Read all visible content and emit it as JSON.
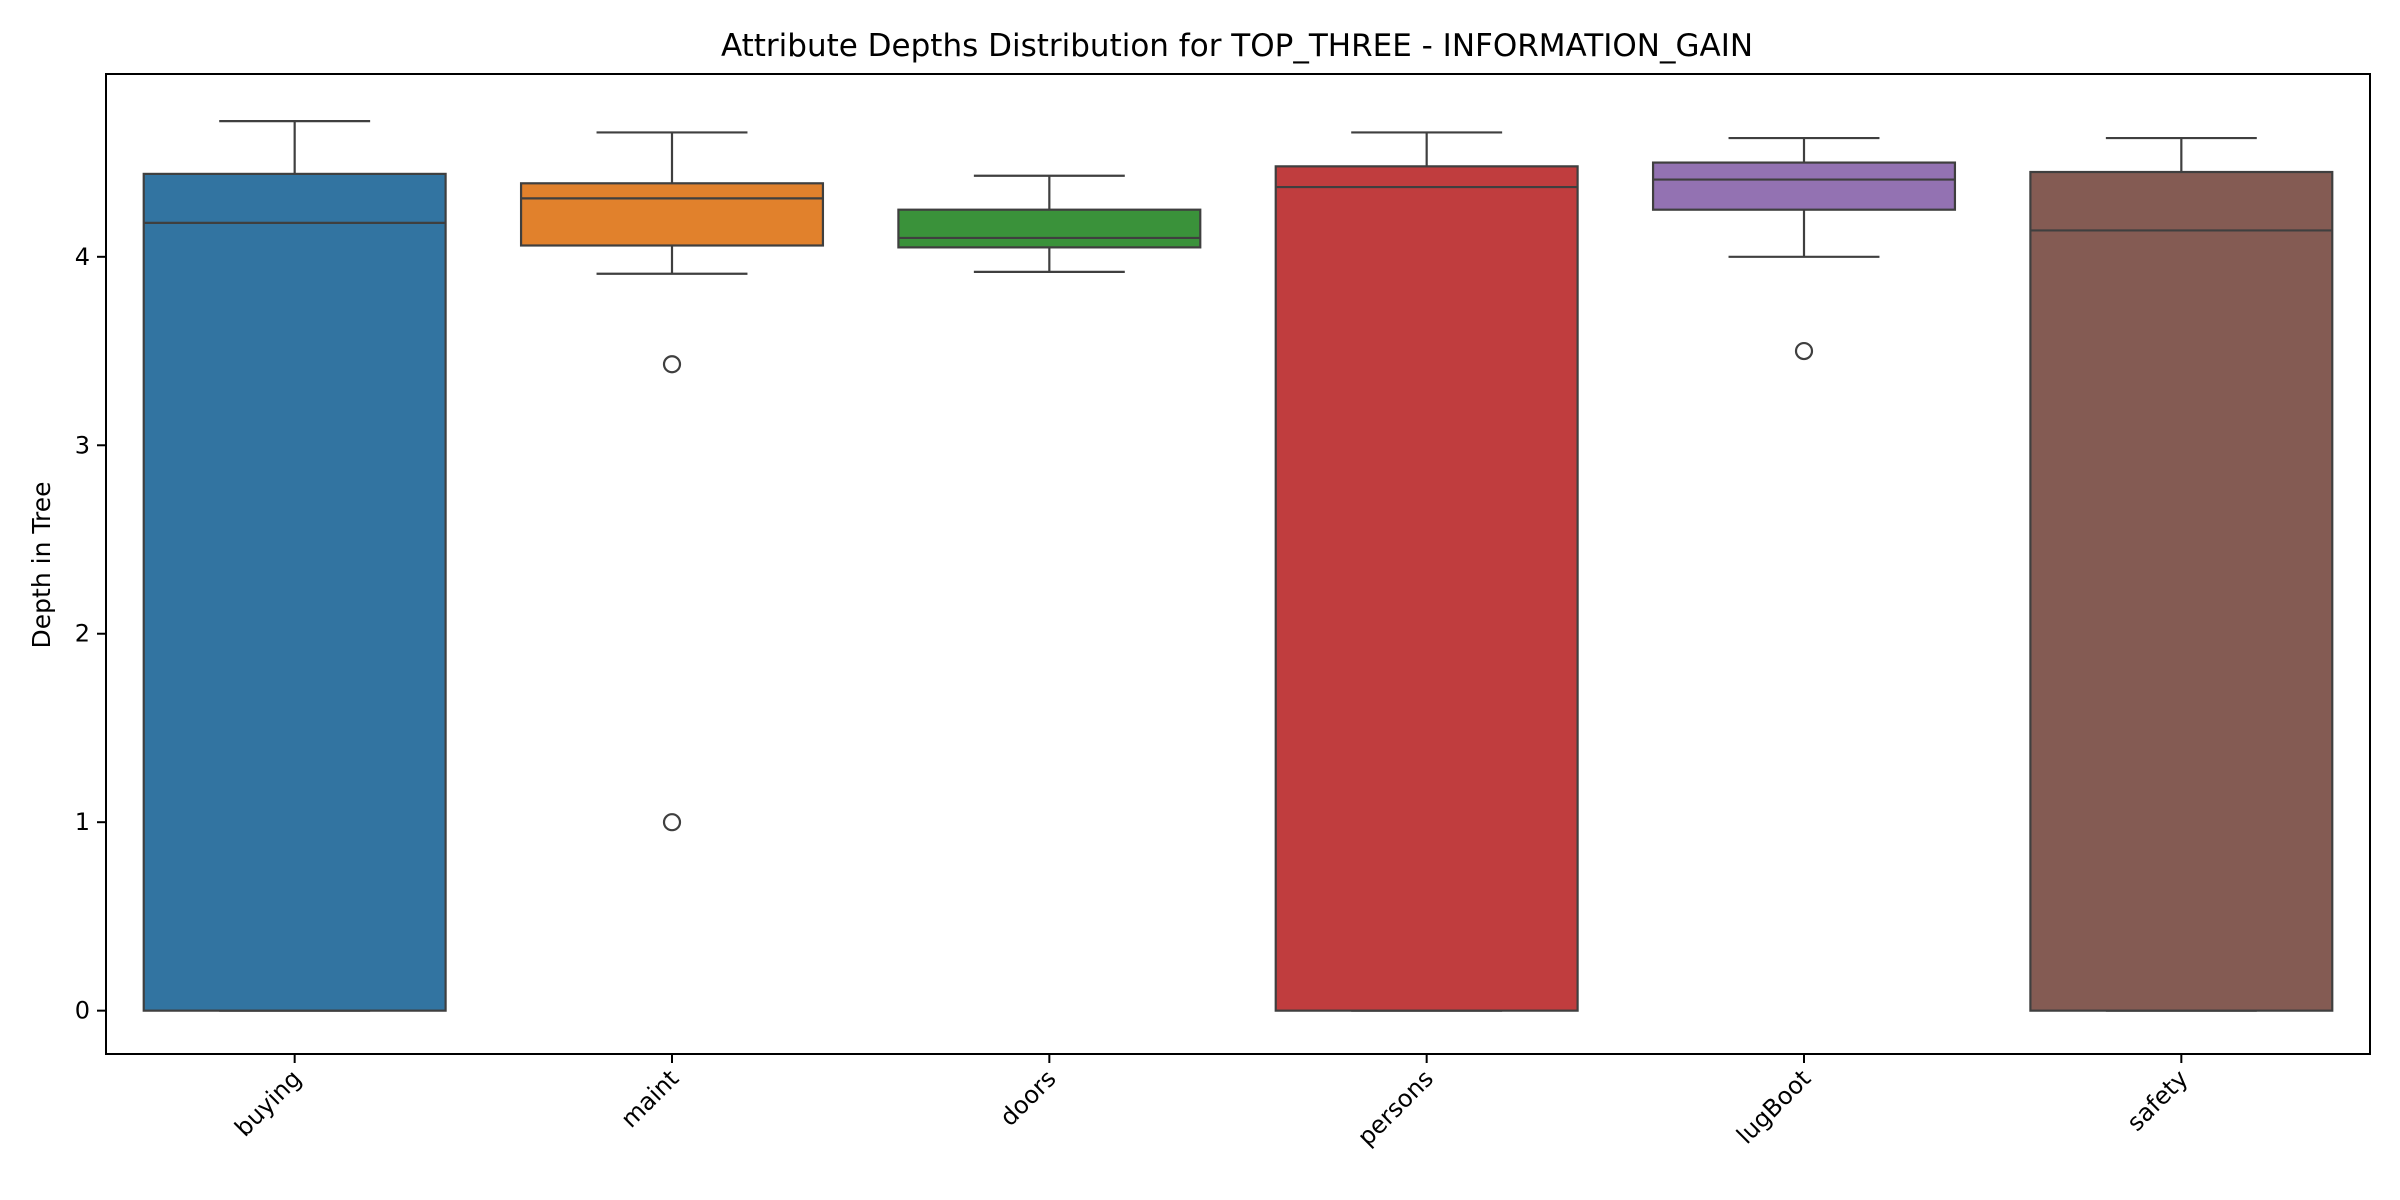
{
  "chart_data": {
    "type": "boxplot",
    "title": "Attribute Depths Distribution for TOP_THREE - INFORMATION_GAIN",
    "xlabel": "",
    "ylabel": "Depth in Tree",
    "ylim": [
      -0.23,
      4.97
    ],
    "yticks": [
      0,
      1,
      2,
      3,
      4
    ],
    "grid": false,
    "categories": [
      "buying",
      "maint",
      "doors",
      "persons",
      "lugBoot",
      "safety"
    ],
    "boxes": [
      {
        "category": "buying",
        "color": "#3274a1",
        "whisker_low": 0.0,
        "q1": 0.0,
        "median": 4.18,
        "q3": 4.44,
        "whisker_high": 4.72,
        "outliers": []
      },
      {
        "category": "maint",
        "color": "#e1812c",
        "whisker_low": 3.91,
        "q1": 4.06,
        "median": 4.31,
        "q3": 4.39,
        "whisker_high": 4.66,
        "outliers": [
          3.43,
          1.0
        ]
      },
      {
        "category": "doors",
        "color": "#3a923a",
        "whisker_low": 3.92,
        "q1": 4.05,
        "median": 4.1,
        "q3": 4.25,
        "whisker_high": 4.43,
        "outliers": []
      },
      {
        "category": "persons",
        "color": "#c03d3e",
        "whisker_low": 0.0,
        "q1": 0.0,
        "median": 4.37,
        "q3": 4.48,
        "whisker_high": 4.66,
        "outliers": []
      },
      {
        "category": "lugBoot",
        "color": "#9372b2",
        "whisker_low": 4.0,
        "q1": 4.25,
        "median": 4.41,
        "q3": 4.5,
        "whisker_high": 4.63,
        "outliers": [
          3.5
        ]
      },
      {
        "category": "safety",
        "color": "#845b53",
        "whisker_low": 0.0,
        "q1": 0.0,
        "median": 4.14,
        "q3": 4.45,
        "whisker_high": 4.63,
        "outliers": []
      }
    ]
  }
}
